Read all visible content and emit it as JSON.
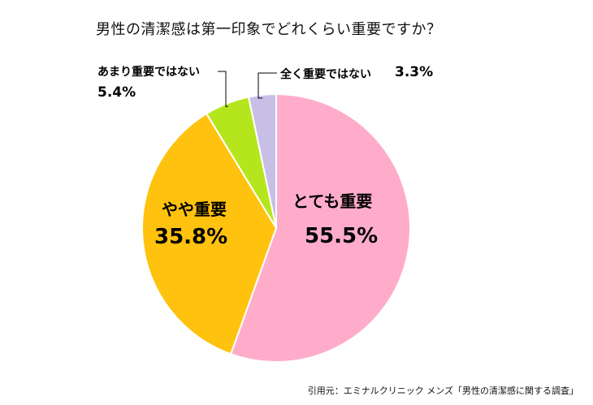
{
  "title": "男性の清潔感は第一印象でどれくらい重要ですか？",
  "source": "引用元：エミナルクリニック メンズ「男性の清潔感に関する調査」",
  "colors": {
    "slice_0": "#FFACCB",
    "slice_1": "#FFC20E",
    "slice_2": "#B5E61D",
    "slice_3": "#C8BFE7",
    "stroke": "#FFFFFF",
    "leader": "#000000"
  },
  "labels": {
    "slice_0_name": "とても重要",
    "slice_0_pct": "55.5%",
    "slice_1_name": "やや重要",
    "slice_1_pct": "35.8%",
    "slice_2_name": "あまり重要ではない",
    "slice_2_pct": "5.4%",
    "slice_3_name": "全く重要ではない",
    "slice_3_pct": "3.3%"
  },
  "chart_data": {
    "type": "pie",
    "title": "男性の清潔感は第一印象でどれくらい重要ですか？",
    "categories": [
      "とても重要",
      "やや重要",
      "あまり重要ではない",
      "全く重要ではない"
    ],
    "values": [
      55.5,
      35.8,
      5.4,
      3.3
    ],
    "unit": "%",
    "direction": "clockwise from top"
  }
}
